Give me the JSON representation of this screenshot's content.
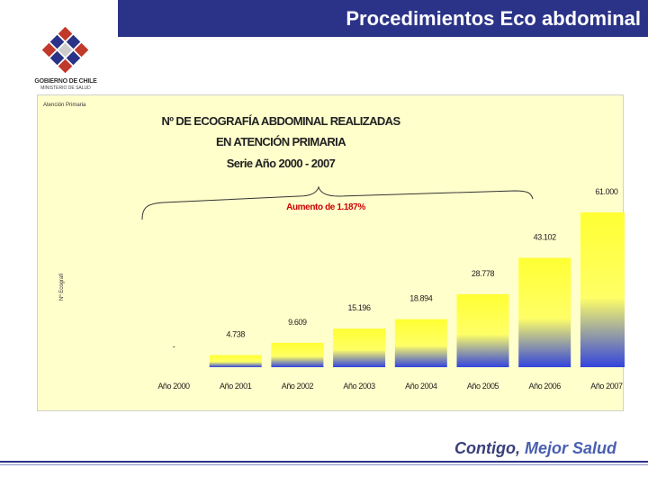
{
  "header": {
    "title": "Procedimientos Eco abdominal"
  },
  "logo": {
    "org": "GOBIERNO DE CHILE",
    "ministry": "MINISTERIO DE SALUD"
  },
  "footer": {
    "slogan_part1": "Contigo, ",
    "slogan_part2": "Mejor Salud"
  },
  "colors": {
    "header_bg": "#2b3388",
    "chart_bg": "#ffffcc",
    "bar_top": "#ffff33",
    "bar_bottom": "#3344dd",
    "annotation_red": "#cc0000"
  },
  "chart_data": {
    "type": "bar",
    "source_note": "Atención Primaria",
    "title_lines": [
      "Nº DE ECOGRAFÍA ABDOMINAL REALIZADAS",
      "EN ATENCIÓN PRIMARIA",
      "Serie Año 2000 - 2007"
    ],
    "ylabel": "Nº Ecografí",
    "xlabel": "",
    "categories": [
      "Año 2000",
      "Año 2001",
      "Año 2002",
      "Año 2003",
      "Año 2004",
      "Año 2005",
      "Año 2006",
      "Año 2007"
    ],
    "values": [
      0,
      4738,
      9609,
      15196,
      18894,
      28778,
      43102,
      61000
    ],
    "value_labels": [
      "-",
      "4.738",
      "9.609",
      "15.196",
      "18.894",
      "28.778",
      "43.102",
      "61.000"
    ],
    "ylim": [
      0,
      61000
    ],
    "grid": false,
    "legend": "none",
    "annotation": "Aumento de 1.187%"
  }
}
